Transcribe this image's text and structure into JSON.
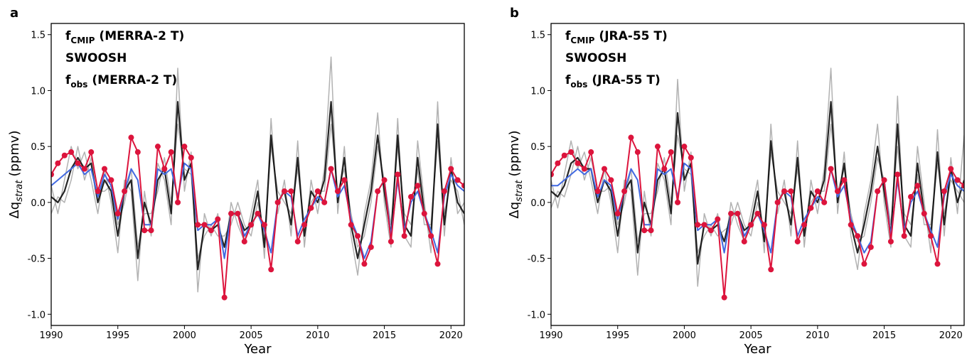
{
  "chart_data": [
    {
      "type": "line",
      "panel_label": "a",
      "xlabel": "Year",
      "ylabel": "Δq",
      "ylabel_sub": "strat",
      "ylabel_unit": "(ppmv)",
      "xlim": [
        1990,
        2021
      ],
      "ylim": [
        -1.1,
        1.6
      ],
      "xticks": [
        1990,
        1995,
        2000,
        2005,
        2010,
        2015,
        2020
      ],
      "yticks": [
        {
          "value": -1.0,
          "label": "-1.0"
        },
        -0.5,
        {
          "value": 0.0,
          "label": "0.0"
        },
        0.5,
        {
          "value": 1.0,
          "label": "1.0"
        },
        1.5
      ],
      "x": [
        1990,
        1990.5,
        1991,
        1991.5,
        1992,
        1992.5,
        1993,
        1993.5,
        1994,
        1994.5,
        1995,
        1995.5,
        1996,
        1996.5,
        1997,
        1997.5,
        1998,
        1998.5,
        1999,
        1999.5,
        2000,
        2000.5,
        2001,
        2001.5,
        2002,
        2002.5,
        2003,
        2003.5,
        2004,
        2004.5,
        2005,
        2005.5,
        2006,
        2006.5,
        2007,
        2007.5,
        2008,
        2008.5,
        2009,
        2009.5,
        2010,
        2010.5,
        2011,
        2011.5,
        2012,
        2012.5,
        2013,
        2013.5,
        2014,
        2014.5,
        2015,
        2015.5,
        2016,
        2016.5,
        2017,
        2017.5,
        2018,
        2018.5,
        2019,
        2019.5,
        2020,
        2020.5,
        2021
      ],
      "series": [
        {
          "name": "f",
          "name_sub": "CMIP",
          "name_suffix": "(MERRA-2 T)",
          "color": "#000000",
          "member_color": "#aaaaaa",
          "values": [
            0.05,
            0.0,
            0.1,
            0.3,
            0.4,
            0.3,
            0.35,
            0.0,
            0.2,
            0.1,
            -0.3,
            0.1,
            0.2,
            -0.5,
            0.0,
            -0.2,
            0.2,
            0.3,
            -0.1,
            0.9,
            0.2,
            0.35,
            -0.6,
            -0.2,
            -0.25,
            -0.2,
            -0.4,
            -0.1,
            -0.1,
            -0.25,
            -0.2,
            0.1,
            -0.4,
            0.6,
            0.0,
            0.1,
            -0.2,
            0.4,
            -0.3,
            0.1,
            0.0,
            0.2,
            0.9,
            0.0,
            0.4,
            -0.2,
            -0.5,
            -0.2,
            0.1,
            0.6,
            0.1,
            -0.3,
            0.6,
            -0.2,
            -0.3,
            0.4,
            -0.1,
            -0.3,
            0.7,
            -0.2,
            0.3,
            0.0,
            -0.1
          ],
          "members": [
            [
              0.15,
              -0.1,
              0.2,
              0.5,
              0.3,
              0.45,
              0.2,
              -0.1,
              0.3,
              0.0,
              -0.45,
              0.2,
              0.1,
              -0.7,
              0.1,
              -0.3,
              0.35,
              0.2,
              -0.2,
              1.2,
              0.1,
              0.45,
              -0.8,
              -0.1,
              -0.3,
              -0.1,
              -0.5,
              0.0,
              -0.2,
              -0.35,
              -0.1,
              0.2,
              -0.5,
              0.75,
              -0.1,
              0.2,
              -0.3,
              0.55,
              -0.4,
              0.2,
              -0.1,
              0.3,
              1.3,
              -0.1,
              0.5,
              -0.3,
              -0.65,
              -0.1,
              0.2,
              0.8,
              0.0,
              -0.4,
              0.75,
              -0.3,
              -0.4,
              0.55,
              0.0,
              -0.45,
              0.9,
              -0.3,
              0.4,
              -0.1,
              0.0
            ],
            [
              -0.1,
              0.05,
              0.0,
              0.2,
              0.5,
              0.2,
              0.4,
              0.1,
              0.1,
              0.15,
              -0.2,
              0.0,
              0.3,
              -0.4,
              -0.1,
              -0.1,
              0.1,
              0.4,
              0.0,
              0.7,
              0.3,
              0.25,
              -0.5,
              -0.3,
              -0.2,
              -0.3,
              -0.3,
              -0.2,
              0.0,
              -0.2,
              -0.3,
              0.0,
              -0.3,
              0.5,
              0.1,
              0.0,
              -0.1,
              0.3,
              -0.2,
              0.0,
              0.1,
              0.1,
              0.7,
              0.1,
              0.3,
              -0.1,
              -0.4,
              -0.3,
              0.0,
              0.5,
              0.2,
              -0.2,
              0.5,
              -0.1,
              -0.2,
              0.3,
              -0.2,
              -0.2,
              0.55,
              -0.1,
              0.2,
              0.1,
              -0.2
            ]
          ]
        },
        {
          "name": "SWOOSH",
          "color": "#dc143c",
          "values": [
            0.25,
            0.35,
            0.42,
            0.45,
            0.35,
            0.3,
            0.45,
            0.1,
            0.3,
            0.2,
            -0.1,
            0.1,
            0.58,
            0.45,
            -0.25,
            -0.25,
            0.5,
            0.3,
            0.45,
            0.0,
            0.5,
            0.4,
            -0.2,
            -0.2,
            -0.25,
            -0.15,
            -0.85,
            -0.1,
            -0.1,
            -0.35,
            -0.2,
            -0.1,
            -0.2,
            -0.6,
            0.0,
            0.1,
            0.1,
            -0.35,
            -0.2,
            -0.05,
            0.1,
            0.0,
            0.3,
            0.1,
            0.2,
            -0.2,
            -0.3,
            -0.55,
            -0.4,
            0.1,
            0.2,
            -0.35,
            0.25,
            -0.3,
            0.05,
            0.15,
            -0.1,
            -0.3,
            -0.55,
            0.1,
            0.3,
            0.2,
            0.15
          ]
        },
        {
          "name": "f",
          "name_sub": "obs",
          "name_suffix": "(MERRA-2 T)",
          "color": "#4169e1",
          "values": [
            0.15,
            0.2,
            0.25,
            0.3,
            0.35,
            0.25,
            0.3,
            0.05,
            0.25,
            0.15,
            -0.15,
            0.1,
            0.3,
            0.2,
            -0.2,
            -0.2,
            0.3,
            0.25,
            0.3,
            0.05,
            0.35,
            0.3,
            -0.25,
            -0.2,
            -0.2,
            -0.15,
            -0.5,
            -0.1,
            -0.1,
            -0.3,
            -0.2,
            -0.1,
            -0.25,
            -0.45,
            0.0,
            0.1,
            0.05,
            -0.3,
            -0.15,
            -0.05,
            0.05,
            0.0,
            0.3,
            0.05,
            0.15,
            -0.15,
            -0.3,
            -0.5,
            -0.35,
            0.1,
            0.2,
            -0.3,
            0.2,
            -0.25,
            0.0,
            0.1,
            -0.1,
            -0.25,
            -0.45,
            0.05,
            0.25,
            0.15,
            0.1
          ]
        }
      ]
    },
    {
      "type": "line",
      "panel_label": "b",
      "xlabel": "Year",
      "ylabel": "Δq",
      "ylabel_sub": "strat",
      "ylabel_unit": "(ppmv)",
      "xlim": [
        1990,
        2021
      ],
      "ylim": [
        -1.1,
        1.6
      ],
      "xticks": [
        1990,
        1995,
        2000,
        2005,
        2010,
        2015,
        2020
      ],
      "yticks": [
        {
          "value": -1.0,
          "label": "-1.0"
        },
        -0.5,
        {
          "value": 0.0,
          "label": "0.0"
        },
        0.5,
        {
          "value": 1.0,
          "label": "1.0"
        },
        1.5
      ],
      "x": [
        1990,
        1990.5,
        1991,
        1991.5,
        1992,
        1992.5,
        1993,
        1993.5,
        1994,
        1994.5,
        1995,
        1995.5,
        1996,
        1996.5,
        1997,
        1997.5,
        1998,
        1998.5,
        1999,
        1999.5,
        2000,
        2000.5,
        2001,
        2001.5,
        2002,
        2002.5,
        2003,
        2003.5,
        2004,
        2004.5,
        2005,
        2005.5,
        2006,
        2006.5,
        2007,
        2007.5,
        2008,
        2008.5,
        2009,
        2009.5,
        2010,
        2010.5,
        2011,
        2011.5,
        2012,
        2012.5,
        2013,
        2013.5,
        2014,
        2014.5,
        2015,
        2015.5,
        2016,
        2016.5,
        2017,
        2017.5,
        2018,
        2018.5,
        2019,
        2019.5,
        2020,
        2020.5,
        2021
      ],
      "series": [
        {
          "name": "f",
          "name_sub": "CMIP",
          "name_suffix": "(JRA-55 T)",
          "color": "#000000",
          "member_color": "#aaaaaa",
          "values": [
            0.1,
            0.05,
            0.15,
            0.35,
            0.4,
            0.3,
            0.3,
            0.0,
            0.2,
            0.1,
            -0.3,
            0.1,
            0.2,
            -0.45,
            0.0,
            -0.2,
            0.2,
            0.3,
            -0.1,
            0.8,
            0.2,
            0.35,
            -0.55,
            -0.2,
            -0.25,
            -0.2,
            -0.35,
            -0.1,
            -0.1,
            -0.25,
            -0.2,
            0.1,
            -0.35,
            0.55,
            0.0,
            0.1,
            -0.2,
            0.4,
            -0.3,
            0.1,
            0.0,
            0.2,
            0.9,
            0.0,
            0.35,
            -0.2,
            -0.45,
            -0.2,
            0.1,
            0.5,
            0.1,
            -0.3,
            0.7,
            -0.2,
            -0.3,
            0.35,
            -0.1,
            -0.3,
            0.45,
            -0.2,
            0.3,
            0.0,
            0.2
          ],
          "members": [
            [
              0.2,
              -0.05,
              0.25,
              0.55,
              0.3,
              0.45,
              0.2,
              -0.1,
              0.3,
              0.0,
              -0.45,
              0.2,
              0.1,
              -0.65,
              0.1,
              -0.3,
              0.35,
              0.2,
              -0.2,
              1.1,
              0.1,
              0.45,
              -0.75,
              -0.1,
              -0.3,
              -0.1,
              -0.45,
              0.0,
              -0.2,
              -0.35,
              -0.1,
              0.2,
              -0.45,
              0.7,
              -0.1,
              0.2,
              -0.3,
              0.55,
              -0.4,
              0.2,
              -0.1,
              0.3,
              1.2,
              -0.1,
              0.45,
              -0.3,
              -0.6,
              -0.1,
              0.2,
              0.7,
              0.0,
              -0.4,
              0.95,
              -0.3,
              -0.4,
              0.5,
              0.0,
              -0.45,
              0.65,
              -0.3,
              0.4,
              -0.1,
              0.6
            ],
            [
              -0.05,
              0.1,
              0.05,
              0.25,
              0.5,
              0.2,
              0.4,
              0.1,
              0.1,
              0.15,
              -0.2,
              0.0,
              0.3,
              -0.35,
              -0.1,
              -0.1,
              0.1,
              0.4,
              0.0,
              0.6,
              0.3,
              0.25,
              -0.45,
              -0.3,
              -0.2,
              -0.3,
              -0.25,
              -0.2,
              0.0,
              -0.2,
              -0.3,
              0.0,
              -0.25,
              0.45,
              0.1,
              0.0,
              -0.1,
              0.3,
              -0.2,
              0.0,
              0.1,
              0.1,
              0.7,
              0.1,
              0.3,
              -0.1,
              -0.35,
              -0.3,
              0.0,
              0.4,
              0.2,
              -0.2,
              0.5,
              -0.1,
              -0.2,
              0.25,
              -0.2,
              -0.2,
              0.35,
              -0.1,
              0.2,
              0.1,
              0.0
            ]
          ]
        },
        {
          "name": "SWOOSH",
          "color": "#dc143c",
          "values": [
            0.25,
            0.35,
            0.42,
            0.45,
            0.35,
            0.3,
            0.45,
            0.1,
            0.3,
            0.2,
            -0.1,
            0.1,
            0.58,
            0.45,
            -0.25,
            -0.25,
            0.5,
            0.3,
            0.45,
            0.0,
            0.5,
            0.4,
            -0.2,
            -0.2,
            -0.25,
            -0.15,
            -0.85,
            -0.1,
            -0.1,
            -0.35,
            -0.2,
            -0.1,
            -0.2,
            -0.6,
            0.0,
            0.1,
            0.1,
            -0.35,
            -0.2,
            -0.05,
            0.1,
            0.0,
            0.3,
            0.1,
            0.2,
            -0.2,
            -0.3,
            -0.55,
            -0.4,
            0.1,
            0.2,
            -0.35,
            0.25,
            -0.3,
            0.05,
            0.15,
            -0.1,
            -0.3,
            -0.55,
            0.1,
            0.3,
            0.2,
            0.15
          ]
        },
        {
          "name": "f",
          "name_sub": "obs",
          "name_suffix": "(JRA-55 T)",
          "color": "#4169e1",
          "values": [
            0.15,
            0.15,
            0.2,
            0.25,
            0.3,
            0.25,
            0.3,
            0.05,
            0.2,
            0.15,
            -0.15,
            0.1,
            0.3,
            0.2,
            -0.2,
            -0.2,
            0.3,
            0.25,
            0.3,
            0.05,
            0.35,
            0.3,
            -0.25,
            -0.2,
            -0.2,
            -0.15,
            -0.45,
            -0.1,
            -0.1,
            -0.3,
            -0.2,
            -0.1,
            -0.25,
            -0.45,
            0.0,
            0.1,
            0.05,
            -0.3,
            -0.15,
            -0.05,
            0.05,
            0.0,
            0.3,
            0.05,
            0.15,
            -0.15,
            -0.3,
            -0.45,
            -0.35,
            0.1,
            0.2,
            -0.3,
            0.2,
            -0.25,
            0.0,
            0.1,
            -0.1,
            -0.25,
            -0.4,
            0.05,
            0.25,
            0.15,
            0.1
          ]
        }
      ]
    }
  ]
}
